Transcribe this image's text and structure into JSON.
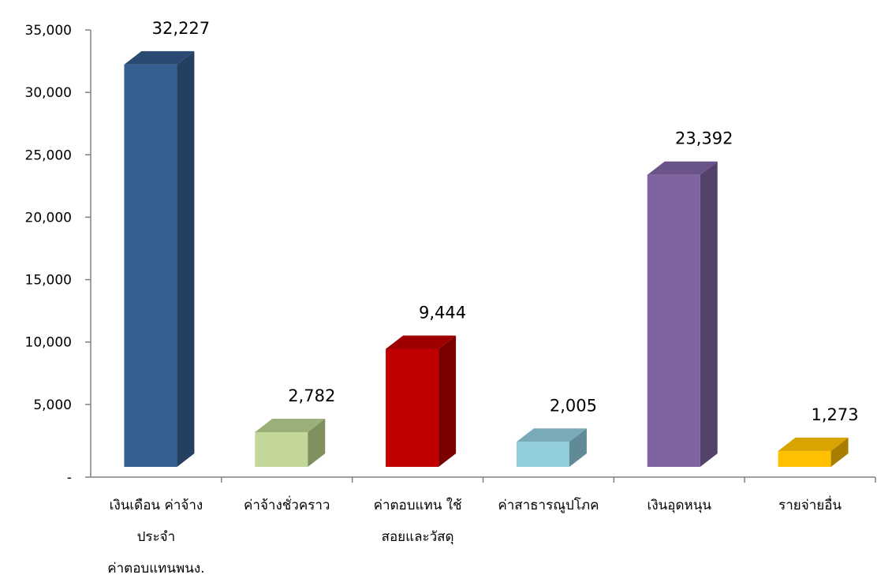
{
  "chart_data": {
    "type": "bar",
    "categories": [
      [
        "เงินเดือน ค่าจ้าง",
        "ประจำ",
        "ค่าตอบแทนพนง."
      ],
      [
        "ค่าจ้างชั่วคราว"
      ],
      [
        "ค่าตอบแทน ใช้",
        "สอยและวัสดุ"
      ],
      [
        "ค่าสาธารณูปโภค"
      ],
      [
        "เงินอุดหนุน"
      ],
      [
        "รายจ่ายอื่น"
      ]
    ],
    "values": [
      32227,
      2782,
      9444,
      2005,
      23392,
      1273
    ],
    "data_labels": [
      "32,227",
      "2,782",
      "9,444",
      "2,005",
      "23,392",
      "1,273"
    ],
    "ylim": [
      0,
      35000
    ],
    "yticks": [
      0,
      5000,
      10000,
      15000,
      20000,
      25000,
      30000,
      35000
    ],
    "ytick_labels": [
      "-",
      "5,000",
      "10,000",
      "15,000",
      "20,000",
      "25,000",
      "30,000",
      "35,000"
    ],
    "grid": false,
    "bar_style": "3d",
    "colors": [
      {
        "front": "#376092",
        "side": "#243F60",
        "top": "#2A4A73"
      },
      {
        "front": "#C4D79B",
        "side": "#7F8F60",
        "top": "#9BAF78"
      },
      {
        "front": "#C00000",
        "side": "#7A0000",
        "top": "#9E0000"
      },
      {
        "front": "#92CDDC",
        "side": "#5F8A96",
        "top": "#78AAB8"
      },
      {
        "front": "#8064A2",
        "side": "#54426B",
        "top": "#6A5388"
      },
      {
        "front": "#FFC000",
        "side": "#A77E00",
        "top": "#D9A300"
      }
    ]
  }
}
